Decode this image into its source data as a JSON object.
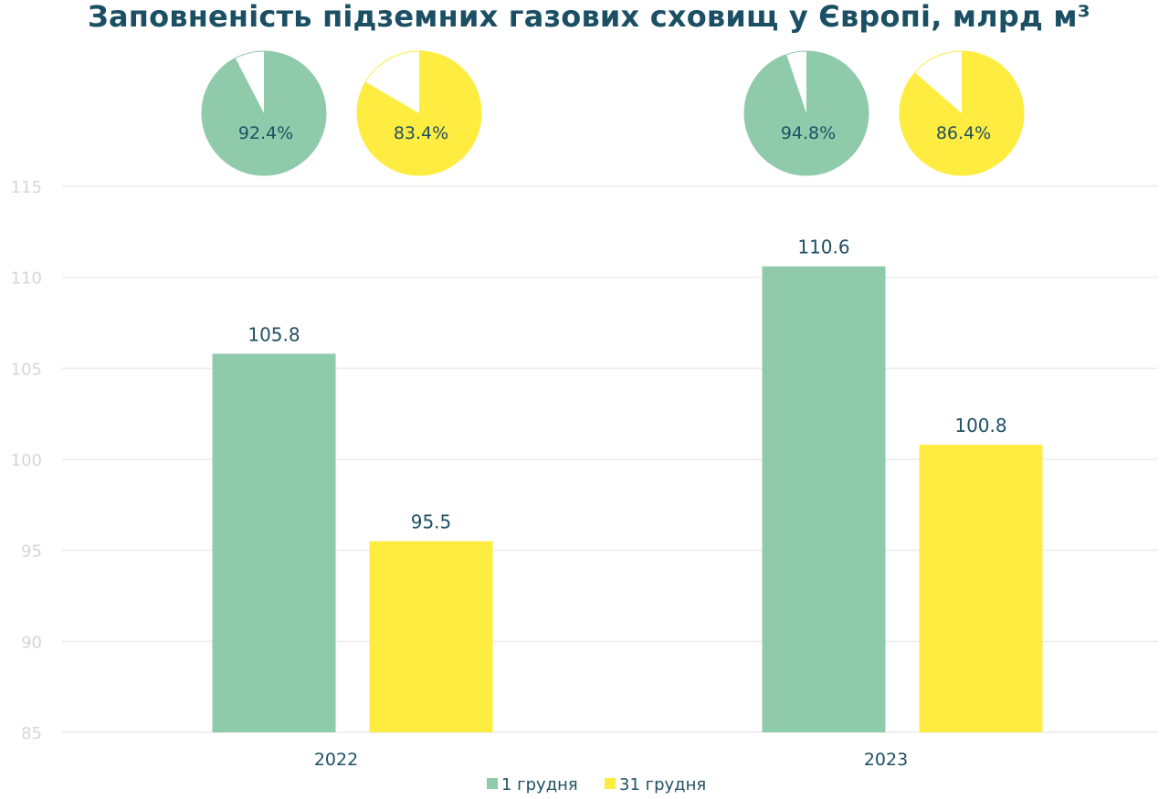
{
  "colors": {
    "title": "#1b4f63",
    "text": "#1f5063",
    "tick": "#d6d6d6",
    "grid": "#ececec",
    "series1": "#8fcaab",
    "series2": "#ffec40",
    "pie_remainder": "#ffffff"
  },
  "chart_data": {
    "type": "bar",
    "title": "Заповненість підземних газових сховищ у Європі, млрд м³",
    "xlabel": "",
    "ylabel": "",
    "ylim": [
      85,
      115
    ],
    "yticks": [
      "85",
      "90",
      "95",
      "100",
      "105",
      "110",
      "115"
    ],
    "grid": true,
    "legend_position": "bottom",
    "categories": [
      "2022",
      "2023"
    ],
    "series": [
      {
        "name": "1 грудня",
        "color": "#8fcaab",
        "values": [
          105.8,
          110.6
        ],
        "labels": [
          "105.8",
          "110.6"
        ]
      },
      {
        "name": "31 грудня",
        "color": "#ffec40",
        "values": [
          95.5,
          100.8
        ],
        "labels": [
          "95.5",
          "100.8"
        ]
      }
    ],
    "pies": [
      {
        "category": "2022",
        "series": "1 грудня",
        "percent": 92.4,
        "label": "92.4%"
      },
      {
        "category": "2022",
        "series": "31 грудня",
        "percent": 83.4,
        "label": "83.4%"
      },
      {
        "category": "2023",
        "series": "1 грудня",
        "percent": 94.8,
        "label": "94.8%"
      },
      {
        "category": "2023",
        "series": "31 грудня",
        "percent": 86.4,
        "label": "86.4%"
      }
    ]
  }
}
